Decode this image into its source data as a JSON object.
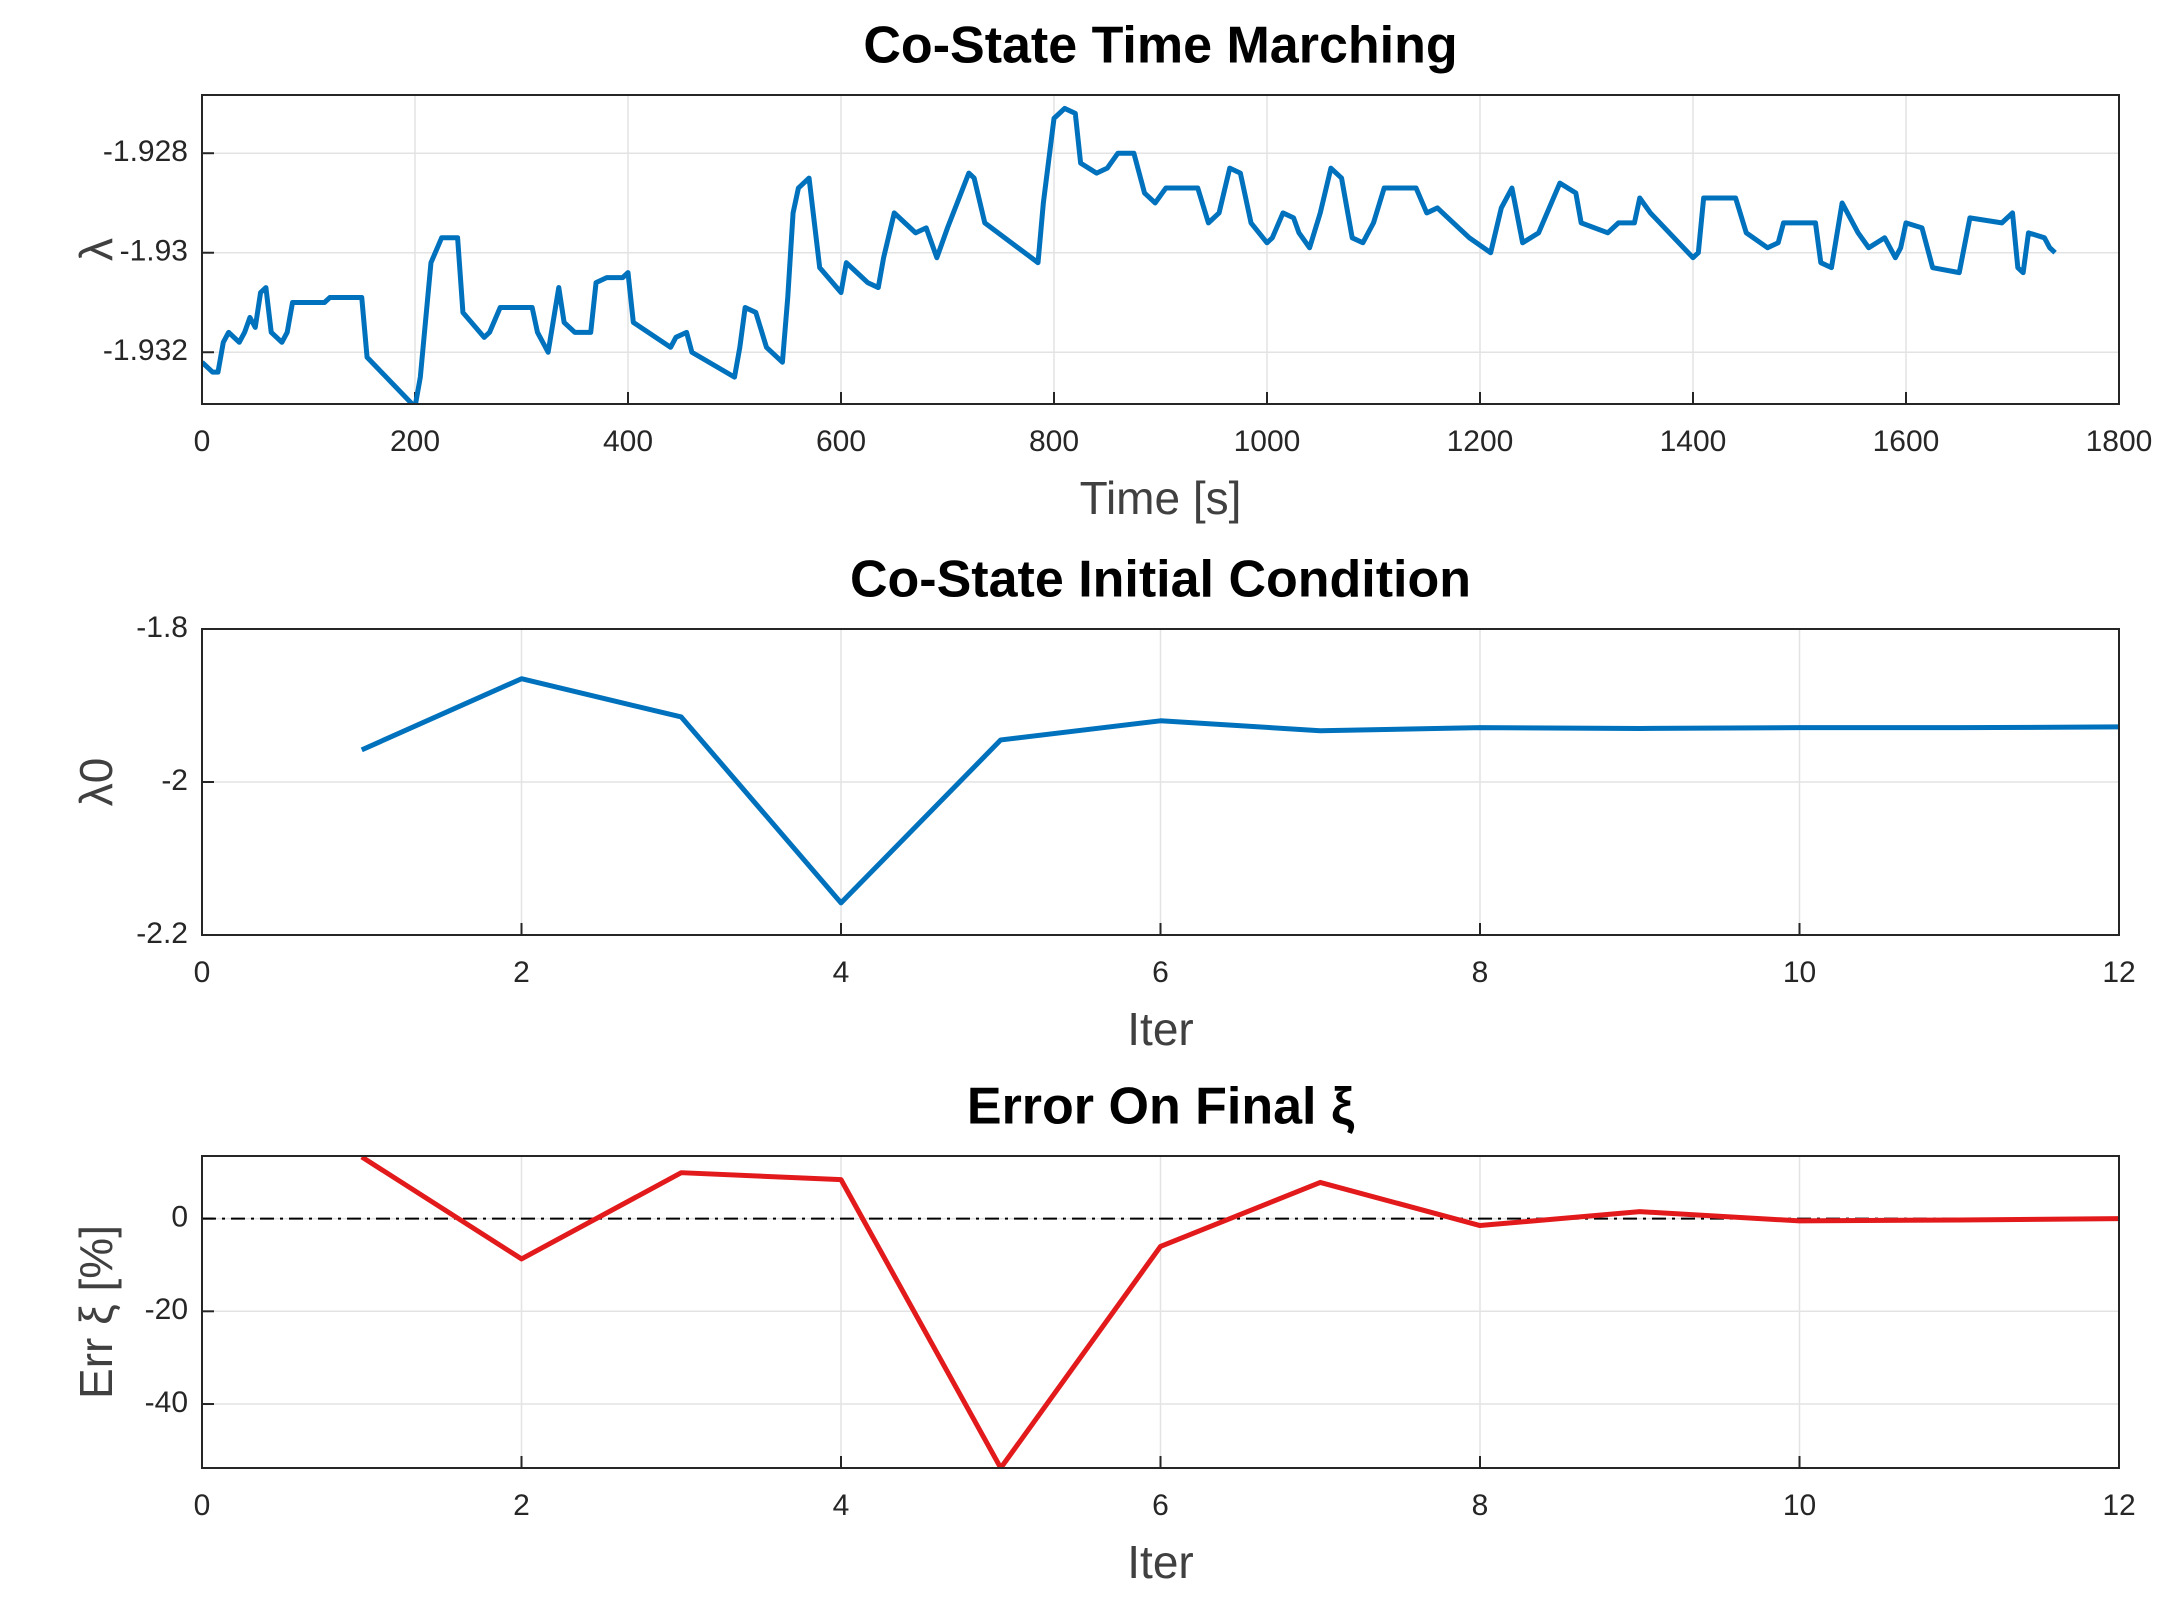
{
  "chart_data": [
    {
      "type": "line",
      "title": "Co-State Time Marching",
      "xlabel": "Time [s]",
      "ylabel": "λ",
      "xlim": [
        0,
        1800
      ],
      "xticks": [
        0,
        200,
        400,
        600,
        800,
        1000,
        1200,
        1400,
        1600,
        1800
      ],
      "ylim": [
        -1.93304,
        -1.92683
      ],
      "yticks": [
        -1.932,
        -1.93,
        -1.928
      ],
      "grid": true,
      "series": [
        {
          "name": "λ",
          "color": "#0072bd",
          "x": [
            0,
            10,
            15,
            20,
            25,
            35,
            40,
            45,
            50,
            55,
            60,
            65,
            75,
            80,
            85,
            100,
            115,
            120,
            140,
            150,
            155,
            200,
            205,
            215,
            225,
            240,
            245,
            265,
            270,
            280,
            300,
            310,
            315,
            325,
            335,
            340,
            350,
            365,
            370,
            380,
            395,
            400,
            405,
            440,
            445,
            455,
            460,
            500,
            505,
            510,
            520,
            530,
            545,
            550,
            555,
            560,
            570,
            580,
            600,
            605,
            615,
            625,
            635,
            640,
            650,
            660,
            670,
            680,
            690,
            700,
            720,
            725,
            735,
            785,
            790,
            800,
            810,
            820,
            825,
            840,
            850,
            860,
            875,
            885,
            895,
            905,
            935,
            945,
            955,
            965,
            975,
            985,
            1000,
            1005,
            1015,
            1025,
            1030,
            1040,
            1050,
            1060,
            1070,
            1080,
            1090,
            1100,
            1110,
            1140,
            1150,
            1160,
            1170,
            1190,
            1210,
            1220,
            1230,
            1240,
            1255,
            1275,
            1290,
            1295,
            1320,
            1330,
            1345,
            1350,
            1360,
            1400,
            1405,
            1410,
            1440,
            1450,
            1470,
            1480,
            1485,
            1515,
            1520,
            1530,
            1540,
            1555,
            1565,
            1580,
            1590,
            1595,
            1600,
            1615,
            1625,
            1650,
            1660,
            1690,
            1700,
            1705,
            1710,
            1715,
            1730,
            1735,
            1740
          ],
          "values": [
            -1.9322,
            -1.9324,
            -1.9324,
            -1.9318,
            -1.9316,
            -1.9318,
            -1.9316,
            -1.9313,
            -1.9315,
            -1.9308,
            -1.9307,
            -1.9316,
            -1.9318,
            -1.9316,
            -1.931,
            -1.931,
            -1.931,
            -1.9309,
            -1.9309,
            -1.9309,
            -1.9321,
            -1.9331,
            -1.9325,
            -1.9302,
            -1.9297,
            -1.9297,
            -1.9312,
            -1.9317,
            -1.9316,
            -1.9311,
            -1.9311,
            -1.9311,
            -1.9316,
            -1.932,
            -1.9307,
            -1.9314,
            -1.9316,
            -1.9316,
            -1.9306,
            -1.9305,
            -1.9305,
            -1.9304,
            -1.9314,
            -1.9319,
            -1.9317,
            -1.9316,
            -1.932,
            -1.9325,
            -1.9319,
            -1.9311,
            -1.9312,
            -1.9319,
            -1.9322,
            -1.9309,
            -1.9292,
            -1.9287,
            -1.9285,
            -1.9303,
            -1.9308,
            -1.9302,
            -1.9304,
            -1.9306,
            -1.9307,
            -1.9301,
            -1.9292,
            -1.9294,
            -1.9296,
            -1.9295,
            -1.9301,
            -1.9295,
            -1.9284,
            -1.9285,
            -1.9294,
            -1.9302,
            -1.929,
            -1.9273,
            -1.9271,
            -1.9272,
            -1.9282,
            -1.9284,
            -1.9283,
            -1.928,
            -1.928,
            -1.9288,
            -1.929,
            -1.9287,
            -1.9287,
            -1.9294,
            -1.9292,
            -1.9283,
            -1.9284,
            -1.9294,
            -1.9298,
            -1.9297,
            -1.9292,
            -1.9293,
            -1.9296,
            -1.9299,
            -1.9292,
            -1.9283,
            -1.9285,
            -1.9297,
            -1.9298,
            -1.9294,
            -1.9287,
            -1.9287,
            -1.9292,
            -1.9291,
            -1.9293,
            -1.9297,
            -1.93,
            -1.9291,
            -1.9287,
            -1.9298,
            -1.9296,
            -1.9286,
            -1.9288,
            -1.9294,
            -1.9296,
            -1.9294,
            -1.9294,
            -1.9289,
            -1.9292,
            -1.9301,
            -1.93,
            -1.9289,
            -1.9289,
            -1.9296,
            -1.9299,
            -1.9298,
            -1.9294,
            -1.9294,
            -1.9302,
            -1.9303,
            -1.929,
            -1.9296,
            -1.9299,
            -1.9297,
            -1.9301,
            -1.9299,
            -1.9294,
            -1.9295,
            -1.9303,
            -1.9304,
            -1.9293,
            -1.9294,
            -1.9292,
            -1.9303,
            -1.9304,
            -1.9296,
            -1.9297,
            -1.9299,
            -1.93
          ]
        }
      ]
    },
    {
      "type": "line",
      "title": "Co-State Initial Condition",
      "xlabel": "Iter",
      "ylabel": "λ0",
      "xlim": [
        0,
        12
      ],
      "xticks": [
        0,
        2,
        4,
        6,
        8,
        10,
        12
      ],
      "ylim": [
        -2.2,
        -1.8
      ],
      "yticks": [
        -2.2,
        -2,
        -1.8
      ],
      "grid": true,
      "series": [
        {
          "name": "λ0",
          "color": "#0072bd",
          "x": [
            1,
            2,
            3,
            4,
            5,
            6,
            7,
            8,
            9,
            10,
            11,
            12
          ],
          "values": [
            -1.958,
            -1.865,
            -1.915,
            -2.158,
            -1.945,
            -1.92,
            -1.933,
            -1.929,
            -1.93,
            -1.929,
            -1.929,
            -1.928
          ]
        }
      ]
    },
    {
      "type": "line",
      "title": "Error On Final ξ",
      "xlabel": "Iter",
      "ylabel": "Err ξ [%]",
      "xlim": [
        0,
        12
      ],
      "xticks": [
        0,
        2,
        4,
        6,
        8,
        10,
        12
      ],
      "ylim": [
        -53.8,
        13.5
      ],
      "yticks": [
        -40,
        -20,
        0
      ],
      "grid": true,
      "hline": 0,
      "series": [
        {
          "name": "Err ξ",
          "color": "#e31a1c",
          "x": [
            1,
            2,
            3,
            4,
            5,
            6,
            7,
            8,
            9,
            10,
            11,
            12
          ],
          "values": [
            13.3,
            -8.7,
            9.9,
            8.4,
            -53.8,
            -6,
            7.8,
            -1.5,
            1.5,
            -0.5,
            -0.3,
            0
          ]
        }
      ]
    }
  ]
}
